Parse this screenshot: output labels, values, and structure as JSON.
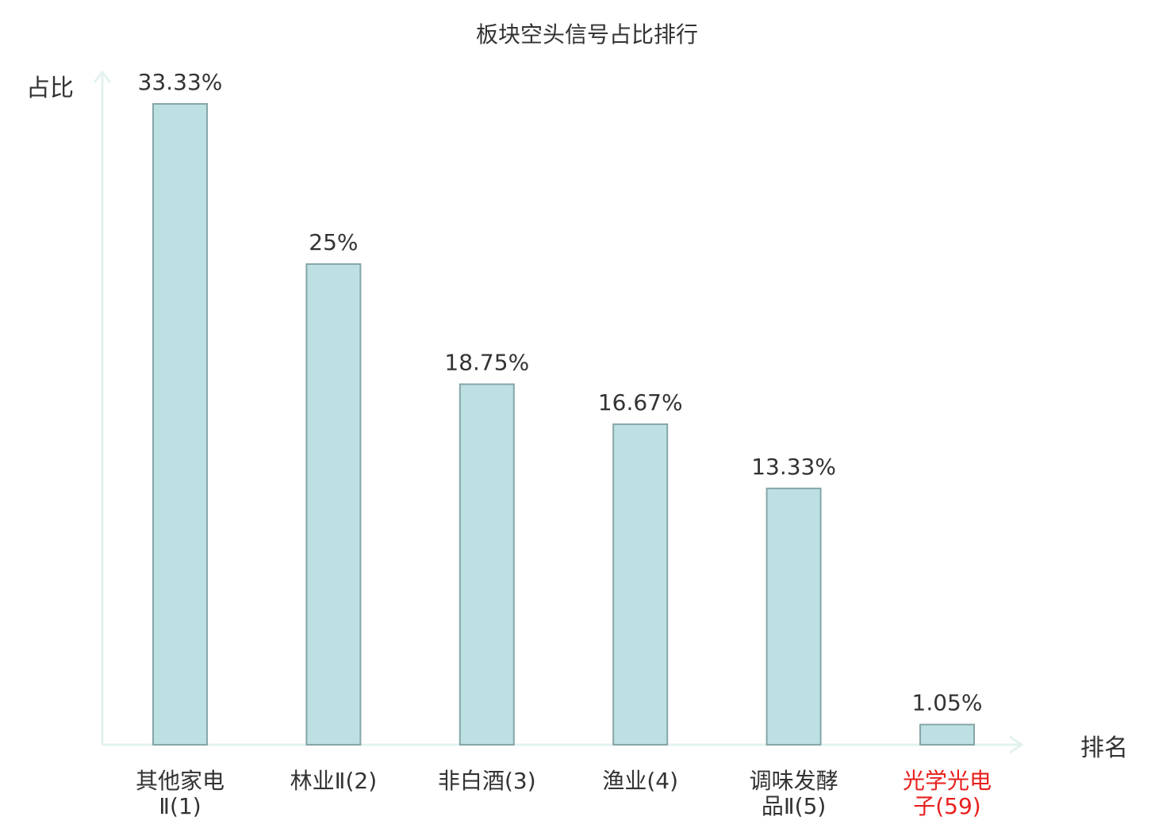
{
  "chart_data": {
    "type": "bar",
    "title": "板块空头信号占比排行",
    "ylabel": "占比",
    "xlabel": "排名",
    "categories": [
      {
        "name": "其他家电Ⅱ",
        "rank": "(1)",
        "lines": [
          "其他家电",
          "Ⅱ(1)"
        ],
        "highlight": false
      },
      {
        "name": "林业Ⅱ",
        "rank": "(2)",
        "lines": [
          "林业Ⅱ(2)"
        ],
        "highlight": false
      },
      {
        "name": "非白酒",
        "rank": "(3)",
        "lines": [
          "非白酒(3)"
        ],
        "highlight": false
      },
      {
        "name": "渔业",
        "rank": "(4)",
        "lines": [
          "渔业(4)"
        ],
        "highlight": false
      },
      {
        "name": "调味发酵品Ⅱ",
        "rank": "(5)",
        "lines": [
          "调味发酵",
          "品Ⅱ(5)"
        ],
        "highlight": false
      },
      {
        "name": "光学光电子",
        "rank": "(59)",
        "lines": [
          "光学光电",
          "子(59)"
        ],
        "highlight": true
      }
    ],
    "values": [
      33.33,
      25,
      18.75,
      16.67,
      13.33,
      1.05
    ],
    "value_labels": [
      "33.33%",
      "25%",
      "18.75%",
      "16.67%",
      "13.33%",
      "1.05%"
    ],
    "ylim": [
      0,
      33.33
    ],
    "grid": false,
    "legend": "none",
    "colors": {
      "bar_fill": "#bde0e2",
      "bar_stroke": "#86a6a8",
      "axis": "#e3f2ef",
      "text": "#333333",
      "highlight_text": "#e8201e"
    }
  }
}
